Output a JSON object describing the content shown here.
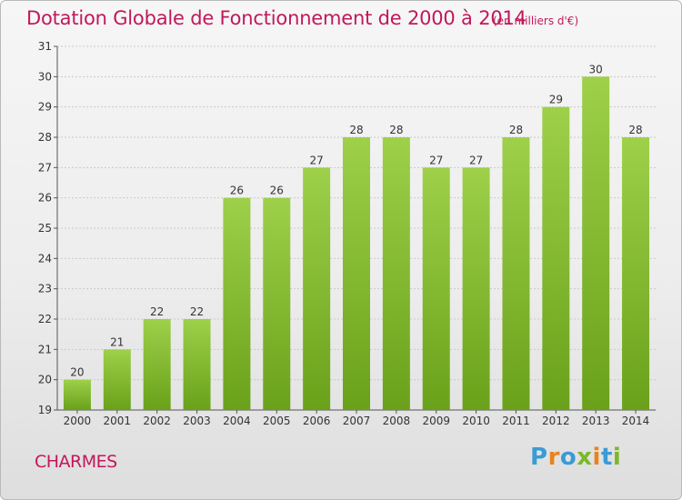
{
  "header": {
    "title": "Dotation Globale de Fonctionnement de 2000 à 2014",
    "subtitle": "(en milliers d'€)"
  },
  "footer": {
    "commune": "CHARMES",
    "logo_letters": [
      "P",
      "r",
      "o",
      "x",
      "i",
      "t",
      "i"
    ],
    "logo_colors": [
      "#3a9bd5",
      "#e8831e",
      "#3a9bd5",
      "#7ab829",
      "#e8831e",
      "#3a9bd5",
      "#7ab829"
    ]
  },
  "colors": {
    "bar_light": "#9ed04a",
    "bar_dark": "#6aa11a",
    "grid": "#c9c9c9",
    "axis": "#555555",
    "accent": "#c2185b"
  },
  "chart_data": {
    "type": "bar",
    "categories": [
      "2000",
      "2001",
      "2002",
      "2003",
      "2004",
      "2005",
      "2006",
      "2007",
      "2008",
      "2009",
      "2010",
      "2011",
      "2012",
      "2013",
      "2014"
    ],
    "values": [
      20,
      21,
      22,
      22,
      26,
      26,
      27,
      28,
      28,
      27,
      27,
      28,
      29,
      30,
      28
    ],
    "title": "Dotation Globale de Fonctionnement de 2000 à 2014",
    "subtitle": "(en milliers d'€)",
    "xlabel": "",
    "ylabel": "",
    "ylim": [
      19,
      31
    ],
    "yticks": [
      19,
      20,
      21,
      22,
      23,
      24,
      25,
      26,
      27,
      28,
      29,
      30,
      31
    ],
    "grid": true,
    "data_labels": true
  }
}
